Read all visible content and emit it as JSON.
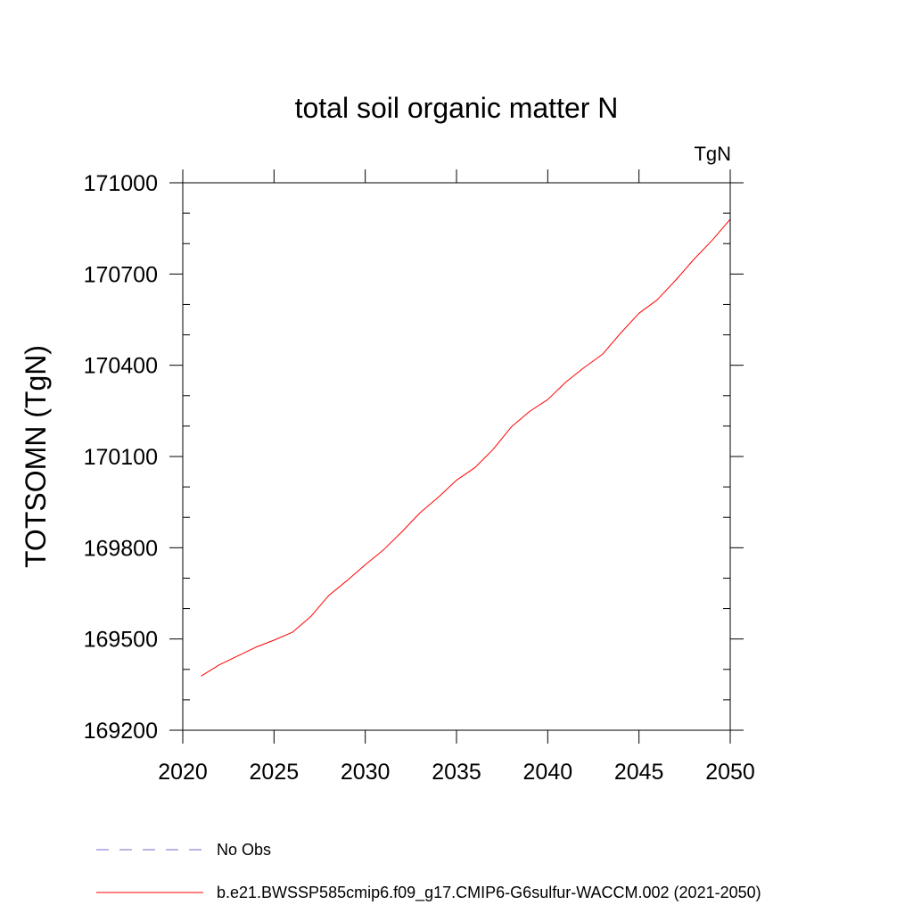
{
  "chart_data": {
    "type": "line",
    "title": "total soil organic matter N",
    "units_label": "TgN",
    "ylabel": "TOTSOMN  (TgN)",
    "xlabel": "",
    "xlim": [
      2020,
      2050
    ],
    "ylim": [
      169200,
      171000
    ],
    "x_ticks": [
      2020,
      2025,
      2030,
      2035,
      2040,
      2045,
      2050
    ],
    "y_ticks": [
      169200,
      169500,
      169800,
      170100,
      170400,
      170700,
      171000
    ],
    "x_tick_labels": [
      "2020",
      "2025",
      "2030",
      "2035",
      "2040",
      "2045",
      "2050"
    ],
    "y_tick_labels": [
      "169200",
      "169500",
      "169800",
      "170100",
      "170400",
      "170700",
      "171000"
    ],
    "grid": false,
    "legend_position": "bottom",
    "legend": [
      {
        "label": "No Obs",
        "color": "#7b68c8",
        "style": "dashed"
      },
      {
        "label": "b.e21.BWSSP585cmip6.f09_g17.CMIP6-G6sulfur-WACCM.002 (2021-2050)",
        "color": "#ff0000",
        "style": "solid"
      }
    ],
    "series": [
      {
        "color": "#ff0000",
        "x": [
          2021,
          2022,
          2023,
          2024,
          2025,
          2026,
          2027,
          2028,
          2029,
          2030,
          2031,
          2032,
          2033,
          2034,
          2035,
          2036,
          2037,
          2038,
          2039,
          2040,
          2041,
          2042,
          2043,
          2044,
          2045,
          2046,
          2047,
          2048,
          2049,
          2050
        ],
        "values": [
          169378,
          169415,
          169444,
          169473,
          169496,
          169522,
          169573,
          169643,
          169692,
          169744,
          169793,
          169852,
          169915,
          169966,
          170022,
          170063,
          170123,
          170197,
          170248,
          170287,
          170345,
          170393,
          170436,
          170506,
          170571,
          170615,
          170679,
          170748,
          170810,
          170880
        ]
      }
    ]
  }
}
